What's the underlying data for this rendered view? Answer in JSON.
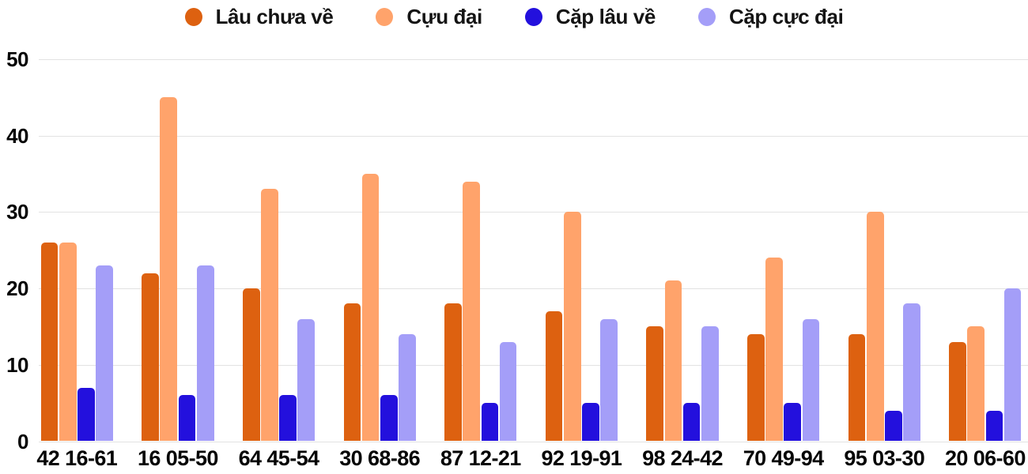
{
  "chart_data": {
    "type": "bar",
    "title": "",
    "categories": [
      "42 16-61",
      "16 05-50",
      "64 45-54",
      "30 68-86",
      "87 12-21",
      "92 19-91",
      "98 24-42",
      "70 49-94",
      "95 03-30",
      "20 06-60"
    ],
    "series": [
      {
        "name": "Lâu chưa về",
        "color": "#dd6110",
        "values": [
          26,
          22,
          20,
          18,
          18,
          17,
          15,
          14,
          14,
          13
        ]
      },
      {
        "name": "Cựu đại",
        "color": "#ffa36b",
        "values": [
          26,
          45,
          33,
          35,
          34,
          30,
          21,
          24,
          30,
          15
        ]
      },
      {
        "name": "Cặp lâu về",
        "color": "#2310dd",
        "values": [
          7,
          6,
          6,
          6,
          5,
          5,
          5,
          5,
          4,
          4
        ]
      },
      {
        "name": "Cặp cực đại",
        "color": "#a49ef8",
        "values": [
          23,
          23,
          16,
          14,
          13,
          16,
          15,
          16,
          18,
          20
        ]
      }
    ],
    "xlabel": "",
    "ylabel": "",
    "ylim": [
      0,
      50
    ],
    "yticks": [
      0,
      10,
      20,
      30,
      40,
      50
    ],
    "grid": true,
    "legend_position": "top-center",
    "colors": {
      "gridline": "#e2e2e2",
      "axis_text": "#050505",
      "legend_text": "#141414",
      "background": "#ffffff"
    }
  }
}
